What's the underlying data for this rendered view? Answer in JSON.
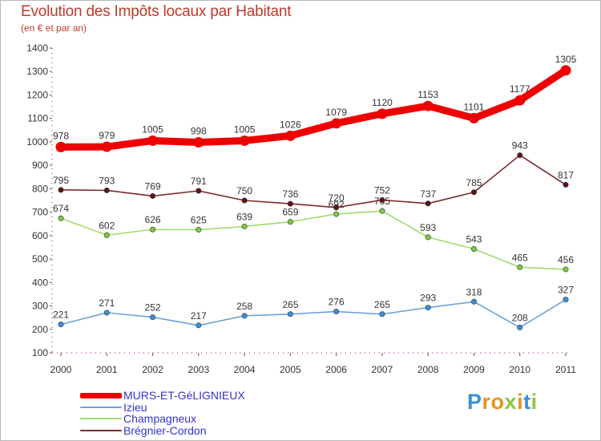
{
  "title": "Evolution des Impôts locaux par Habitant",
  "subtitle": "(en € et par an)",
  "logo": {
    "text": "Proxiti",
    "letters": [
      "P",
      "r",
      "o",
      "x",
      "i",
      "t",
      "i"
    ],
    "colors": [
      "#3a8fd6",
      "#e6941c",
      "#e6941c",
      "#8cc63f",
      "#e6941c",
      "#3a8fd6",
      "#8cc63f"
    ]
  },
  "chart_data": {
    "type": "line",
    "title": "Evolution des Impôts locaux par Habitant",
    "subtitle": "(en € et par an)",
    "xlabel": "",
    "ylabel": "",
    "categories": [
      "2000",
      "2001",
      "2002",
      "2003",
      "2004",
      "2005",
      "2006",
      "2007",
      "2008",
      "2009",
      "2010",
      "2011"
    ],
    "ylim": [
      100,
      1400
    ],
    "yticks": [
      100,
      200,
      300,
      400,
      500,
      600,
      700,
      800,
      900,
      1000,
      1100,
      1200,
      1300,
      1400
    ],
    "grid": false,
    "legend": "bottom-left",
    "series": [
      {
        "name": "MURS-ET-GéLIGNIEUX",
        "color": "#ee0000",
        "marker_color": "#ee0000",
        "values": [
          978,
          979,
          1005,
          998,
          1005,
          1026,
          1079,
          1120,
          1153,
          1101,
          1177,
          1305
        ],
        "labels": [
          "978",
          "979",
          "1005",
          "998",
          "1005",
          "1026",
          "1079",
          "1120",
          "1153",
          "1101",
          "1177",
          "1305"
        ],
        "thick": true
      },
      {
        "name": "Izieu",
        "color": "#6fa3d6",
        "marker_color": "#3e8ed8",
        "values": [
          221,
          271,
          252,
          217,
          258,
          265,
          276,
          265,
          293,
          318,
          208,
          327
        ],
        "labels": [
          "221",
          "271",
          "252",
          "217",
          "258",
          "265",
          "276",
          "265",
          "293",
          "318",
          "208",
          "327"
        ],
        "thick": false
      },
      {
        "name": "Champagneux",
        "color": "#9fdc6e",
        "marker_color": "#7ccc3c",
        "values": [
          674,
          602,
          626,
          625,
          639,
          659,
          692,
          705,
          593,
          543,
          465,
          456
        ],
        "labels": [
          "674",
          "602",
          "626",
          "625",
          "639",
          "659",
          "692",
          "705",
          "593",
          "543",
          "465",
          "456"
        ],
        "thick": false
      },
      {
        "name": "Brégnier-Cordon",
        "color": "#7b2a2a",
        "marker_color": "#5c1414",
        "values": [
          795,
          793,
          769,
          791,
          750,
          736,
          720,
          752,
          737,
          785,
          943,
          817
        ],
        "labels": [
          "795",
          "793",
          "769",
          "791",
          "750",
          "736",
          "720",
          "752",
          "737",
          "785",
          "943",
          "817"
        ],
        "thick": false
      }
    ]
  }
}
